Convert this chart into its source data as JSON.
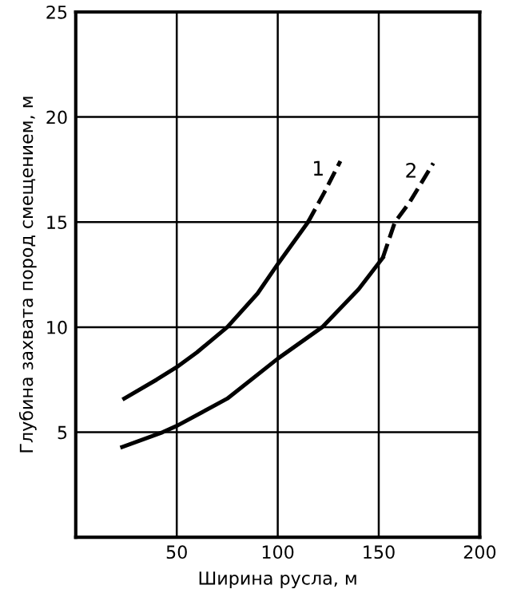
{
  "chart_data": {
    "type": "line",
    "xlabel": "Ширина русла, м",
    "ylabel": "Глубина захвата пород смещением, м",
    "xlim": [
      0,
      200
    ],
    "ylim": [
      0,
      25
    ],
    "xticks": [
      50,
      100,
      150,
      200
    ],
    "yticks": [
      5,
      10,
      15,
      20,
      25
    ],
    "grid": true,
    "marker": "none",
    "series": [
      {
        "color": "#000000",
        "line_style": "solid",
        "x": [
          24,
          40,
          50,
          60,
          75,
          90,
          100,
          115
        ],
        "values": [
          6.6,
          7.5,
          8.1,
          8.8,
          10,
          11.6,
          13,
          15
        ]
      },
      {
        "name": "1",
        "color": "#000000",
        "line_style": "dashed",
        "x": [
          115,
          123,
          131
        ],
        "values": [
          15,
          16.4,
          17.9
        ]
      },
      {
        "color": "#000000",
        "line_style": "solid",
        "x": [
          23,
          43,
          50,
          75,
          100,
          122,
          140,
          152
        ],
        "values": [
          4.3,
          5,
          5.3,
          6.6,
          8.5,
          10,
          11.8,
          13.3
        ]
      },
      {
        "name": "2",
        "color": "#000000",
        "line_style": "dashed",
        "x": [
          152,
          158,
          165,
          177
        ],
        "values": [
          13.3,
          15,
          15.9,
          17.8
        ]
      }
    ]
  }
}
